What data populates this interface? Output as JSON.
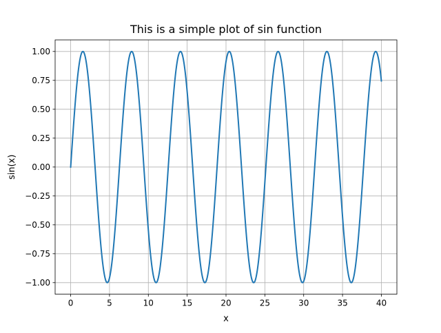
{
  "chart_data": {
    "type": "line",
    "title": "This is a simple plot of sin function",
    "xlabel": "x",
    "ylabel": "sin(x)",
    "xlim": [
      -2.0,
      42.0
    ],
    "ylim": [
      -1.1,
      1.1
    ],
    "xticks": [
      0,
      5,
      10,
      15,
      20,
      25,
      30,
      35,
      40
    ],
    "xtick_labels": [
      "0",
      "5",
      "10",
      "15",
      "20",
      "25",
      "30",
      "35",
      "40"
    ],
    "yticks": [
      -1.0,
      -0.75,
      -0.5,
      -0.25,
      0.0,
      0.25,
      0.5,
      0.75,
      1.0
    ],
    "ytick_labels": [
      "−1.00",
      "−0.75",
      "−0.50",
      "−0.25",
      "0.00",
      "0.25",
      "0.50",
      "0.75",
      "1.00"
    ],
    "grid": true,
    "legend": false,
    "series": [
      {
        "function": "sin(x)",
        "x_range": [
          0,
          40
        ],
        "color": "#1f77b4"
      }
    ]
  },
  "colors": {
    "line": "#1f77b4",
    "grid": "#b0b0b0",
    "axes": "#000000",
    "background": "#ffffff"
  }
}
